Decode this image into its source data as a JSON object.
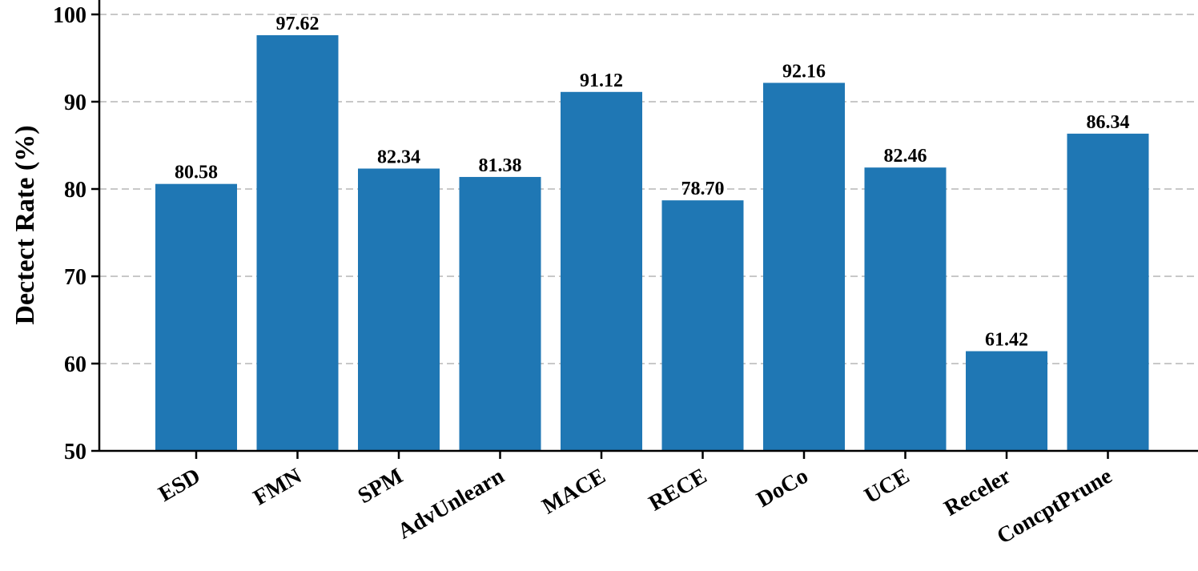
{
  "chart_data": {
    "type": "bar",
    "title": "",
    "xlabel": "",
    "ylabel": "Dectect Rate (%)",
    "ylim": [
      50,
      100
    ],
    "yticks": [
      50,
      60,
      70,
      80,
      90,
      100
    ],
    "grid": "horizontal dashed",
    "categories": [
      "ESD",
      "FMN",
      "SPM",
      "AdvUnlearn",
      "MACE",
      "RECE",
      "DoCo",
      "UCE",
      "Receler",
      "ConcptPrune"
    ],
    "values": [
      80.58,
      97.62,
      82.34,
      81.38,
      91.12,
      78.7,
      92.16,
      82.46,
      61.42,
      86.34
    ],
    "value_labels": [
      "80.58",
      "97.62",
      "82.34",
      "81.38",
      "91.12",
      "78.70",
      "92.16",
      "82.46",
      "61.42",
      "86.34"
    ],
    "colors": {
      "bar": "#1f77b4",
      "grid": "#c8c8c8",
      "axis": "#000000"
    }
  }
}
